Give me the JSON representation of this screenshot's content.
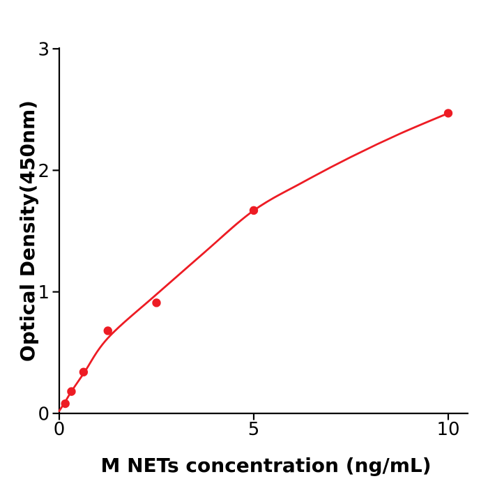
{
  "figure": {
    "background_color": "#ffffff",
    "axis_color": "#000000",
    "accent_color": "#ED1C24"
  },
  "chart_data": {
    "type": "scatter",
    "title": "",
    "xlabel": "M  NETs concentration (ng/mL)",
    "ylabel": "Optical Density(450nm)",
    "xlim": [
      0,
      10.52
    ],
    "ylim": [
      0,
      3
    ],
    "x_ticks": [
      0,
      5,
      10
    ],
    "x_tick_labels": [
      "0",
      "5",
      "10"
    ],
    "y_ticks": [
      0,
      1,
      2,
      3
    ],
    "y_tick_labels": [
      "0",
      "1",
      "2",
      "3"
    ],
    "grid": false,
    "legend_position": "none",
    "series": [
      {
        "name": "standard-points",
        "type": "scatter",
        "color": "#ED1C24",
        "marker": "circle",
        "x": [
          0.156,
          0.313,
          0.625,
          1.25,
          2.5,
          5,
          10
        ],
        "y": [
          0.08,
          0.18,
          0.34,
          0.68,
          0.91,
          1.67,
          2.47
        ]
      },
      {
        "name": "fitted-curve",
        "type": "line",
        "color": "#ED1C24",
        "x": [
          0,
          0.16,
          0.31,
          0.63,
          1.25,
          2.5,
          3.75,
          5,
          6.25,
          7.5,
          8.75,
          10
        ],
        "y": [
          0.02,
          0.1,
          0.18,
          0.33,
          0.62,
          0.98,
          1.33,
          1.67,
          1.9,
          2.11,
          2.3,
          2.47
        ]
      }
    ]
  }
}
